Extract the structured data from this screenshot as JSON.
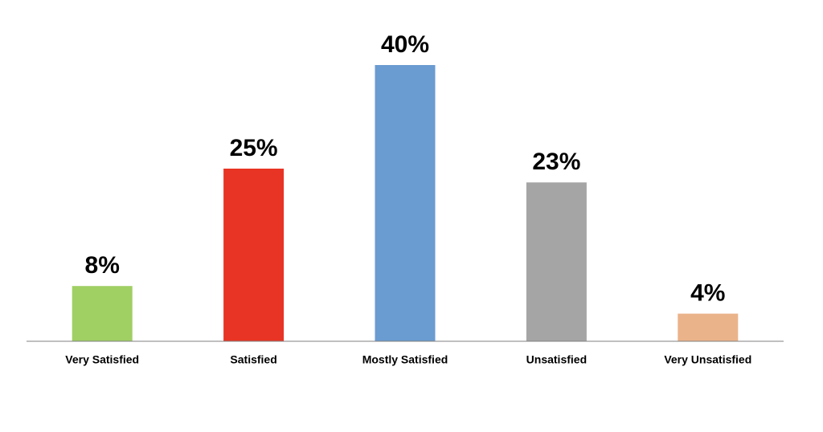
{
  "chart_data": {
    "type": "bar",
    "categories": [
      "Very Satisfied",
      "Satisfied",
      "Mostly Satisfied",
      "Unsatisfied",
      "Very Unsatisfied"
    ],
    "values": [
      8,
      25,
      40,
      23,
      4
    ],
    "value_labels": [
      "8%",
      "25%",
      "40%",
      "23%",
      "4%"
    ],
    "colors": [
      "#a0cf63",
      "#e83424",
      "#6a9bd1",
      "#a5a5a5",
      "#ebb38a"
    ]
  }
}
